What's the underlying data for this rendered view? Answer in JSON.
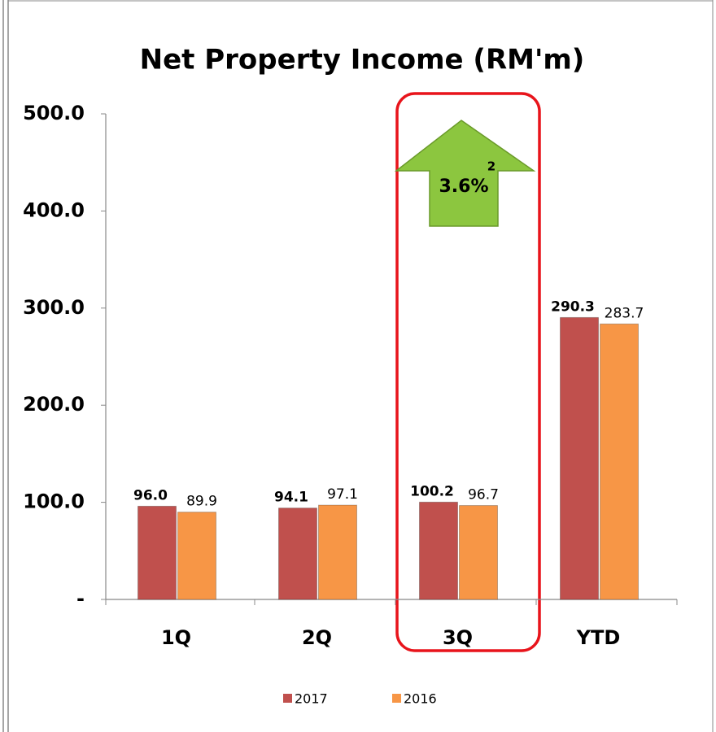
{
  "chart_data": {
    "type": "bar",
    "title": "Net Property Income (RM'm)",
    "categories": [
      "1Q",
      "2Q",
      "3Q",
      "YTD"
    ],
    "series": [
      {
        "name": "2017",
        "color": "#c0504d",
        "values": [
          96.0,
          94.1,
          100.2,
          290.3
        ],
        "value_labels": [
          "96.0",
          "94.1",
          "100.2",
          "290.3"
        ]
      },
      {
        "name": "2016",
        "color": "#f79646",
        "values": [
          89.9,
          97.1,
          96.7,
          283.7
        ],
        "value_labels": [
          "89.9",
          "97.1",
          "96.7",
          "283.7"
        ]
      }
    ],
    "ylim": [
      0,
      500
    ],
    "yticks": [
      {
        "value": 0,
        "label": "-"
      },
      {
        "value": 100,
        "label": "100.0"
      },
      {
        "value": 200,
        "label": "200.0"
      },
      {
        "value": 300,
        "label": "300.0"
      },
      {
        "value": 400,
        "label": "400.0"
      },
      {
        "value": 500,
        "label": "500.0"
      }
    ],
    "grid": false,
    "legend": "bottom",
    "annotations": [
      "3.6%",
      "2"
    ]
  }
}
